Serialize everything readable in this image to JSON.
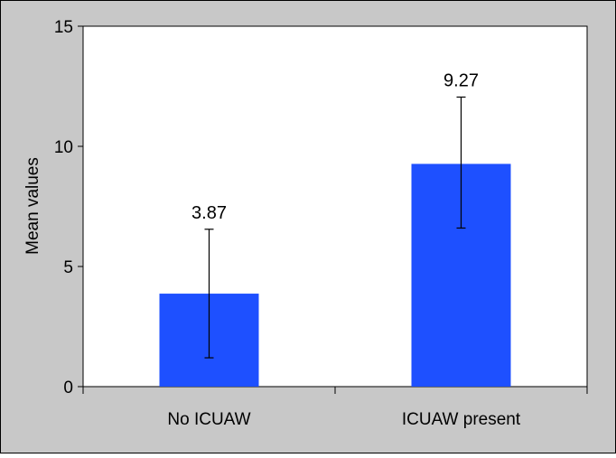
{
  "chart_data": {
    "type": "bar",
    "categories": [
      "No ICUAW",
      "ICUAW present"
    ],
    "values": [
      3.87,
      9.27
    ],
    "error_bars": [
      {
        "low": 1.2,
        "high": 6.55
      },
      {
        "low": 6.6,
        "high": 12.05
      }
    ],
    "data_labels": [
      "3.87",
      "9.27"
    ],
    "title": "",
    "xlabel": "",
    "ylabel": "Mean values",
    "ylim": [
      0,
      15
    ],
    "yticks": [
      0,
      5,
      10,
      15
    ],
    "ytick_labels": [
      "0",
      "5",
      "10",
      "15"
    ],
    "grid": false,
    "legend": "none",
    "colors": {
      "bar": "#1e50ff",
      "frame_background": "#c8c8c8",
      "plot_background": "#ffffff",
      "axis": "#000000"
    }
  }
}
